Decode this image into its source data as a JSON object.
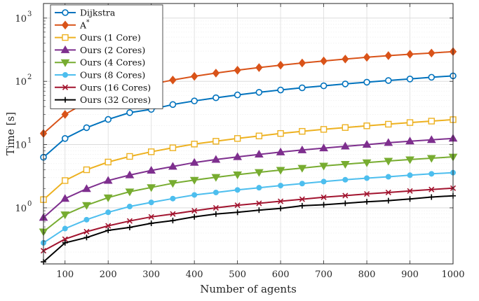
{
  "chart_data": {
    "type": "line",
    "xlabel": "Number of agents",
    "ylabel": "Time [s]",
    "xlim": [
      50,
      1000
    ],
    "ylim": [
      0.13,
      1700
    ],
    "yscale": "log",
    "grid": true,
    "legend": "top-left",
    "x_ticks": [
      100,
      200,
      300,
      400,
      500,
      600,
      700,
      800,
      900,
      1000
    ],
    "y_ticks": [
      {
        "value": 1,
        "base": "10",
        "exp": "0"
      },
      {
        "value": 10,
        "base": "10",
        "exp": "1"
      },
      {
        "value": 100,
        "base": "10",
        "exp": "2"
      },
      {
        "value": 1000,
        "base": "10",
        "exp": "3"
      }
    ],
    "x": [
      50,
      100,
      150,
      200,
      250,
      300,
      350,
      400,
      450,
      500,
      550,
      600,
      650,
      700,
      750,
      800,
      850,
      900,
      950,
      1000
    ],
    "series": [
      {
        "name": "Dijkstra",
        "name_sup": "",
        "color": "#0072BD",
        "marker": "circle",
        "values": [
          6.3,
          12.5,
          18.5,
          25,
          32,
          36,
          43,
          49,
          55,
          61,
          67,
          73,
          79,
          85,
          91,
          97,
          103,
          109,
          116,
          122
        ]
      },
      {
        "name": "A",
        "name_sup": "*",
        "color": "#D95319",
        "marker": "diamond",
        "values": [
          15,
          30,
          47,
          62,
          76,
          90,
          105,
          120,
          135,
          150,
          165,
          180,
          195,
          210,
          225,
          240,
          255,
          268,
          280,
          295
        ]
      },
      {
        "name": "Ours (1 Core)",
        "name_sup": "",
        "color": "#EDB120",
        "marker": "square",
        "values": [
          1.35,
          2.7,
          4.0,
          5.3,
          6.5,
          7.7,
          8.9,
          10.2,
          11.3,
          12.5,
          13.7,
          15.0,
          16.2,
          17.4,
          18.6,
          19.8,
          21.0,
          22.3,
          23.5,
          24.8
        ]
      },
      {
        "name": "Ours (2 Cores)",
        "name_sup": "",
        "color": "#7E2F8E",
        "marker": "triangle-up",
        "values": [
          0.7,
          1.4,
          2.0,
          2.7,
          3.3,
          3.9,
          4.5,
          5.2,
          5.8,
          6.4,
          7.0,
          7.6,
          8.2,
          8.8,
          9.4,
          10.0,
          10.7,
          11.3,
          11.9,
          12.5
        ]
      },
      {
        "name": "Ours (4 Cores)",
        "name_sup": "",
        "color": "#77AC30",
        "marker": "triangle-down",
        "values": [
          0.42,
          0.78,
          1.1,
          1.45,
          1.8,
          2.1,
          2.45,
          2.75,
          3.05,
          3.35,
          3.65,
          3.95,
          4.25,
          4.6,
          4.9,
          5.2,
          5.5,
          5.8,
          6.1,
          6.4
        ]
      },
      {
        "name": "Ours (8 Cores)",
        "name_sup": "",
        "color": "#4DBEEE",
        "marker": "dot",
        "values": [
          0.28,
          0.47,
          0.65,
          0.85,
          1.05,
          1.22,
          1.4,
          1.6,
          1.75,
          1.92,
          2.08,
          2.25,
          2.42,
          2.6,
          2.78,
          2.95,
          3.1,
          3.28,
          3.45,
          3.6
        ]
      },
      {
        "name": "Ours (16 Cores)",
        "name_sup": "",
        "color": "#A2142F",
        "marker": "x",
        "values": [
          0.21,
          0.32,
          0.42,
          0.52,
          0.62,
          0.72,
          0.8,
          0.9,
          1.0,
          1.1,
          1.18,
          1.27,
          1.37,
          1.47,
          1.56,
          1.66,
          1.75,
          1.85,
          1.95,
          2.05
        ]
      },
      {
        "name": "Ours (32 Cores)",
        "name_sup": "",
        "color": "#000000",
        "marker": "plus",
        "values": [
          0.14,
          0.28,
          0.34,
          0.44,
          0.49,
          0.57,
          0.63,
          0.72,
          0.8,
          0.85,
          0.92,
          0.98,
          1.08,
          1.12,
          1.18,
          1.25,
          1.3,
          1.38,
          1.48,
          1.55
        ]
      }
    ]
  }
}
